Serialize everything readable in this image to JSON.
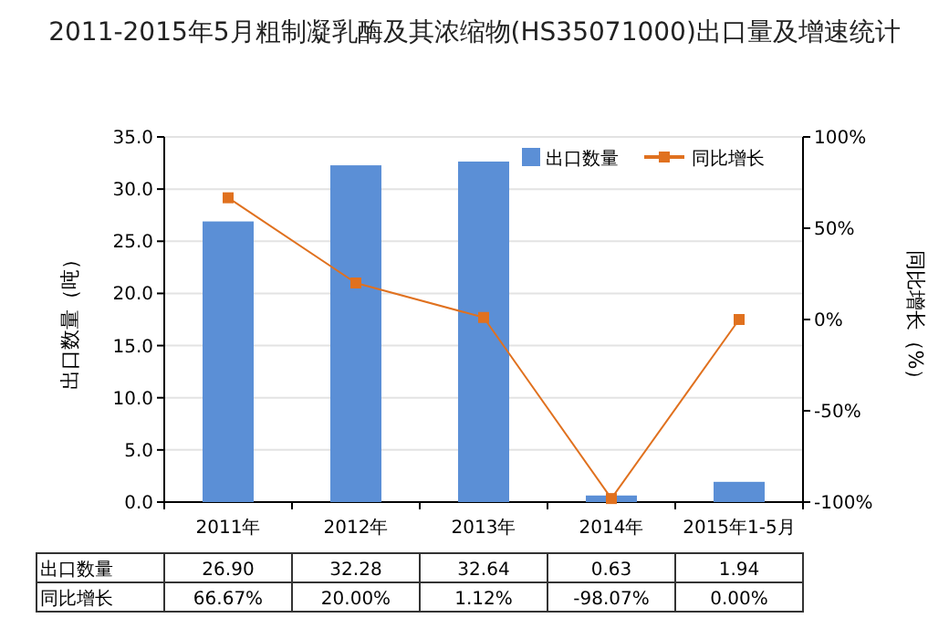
{
  "chart_data": {
    "type": "bar",
    "title": "2011-2015年5月粗制凝乳酶及其浓缩物(HS35071000)出口量及增速统计",
    "ylabel": "出口数量（吨）",
    "y2label": "同比增长（%）",
    "categories": [
      "2011年",
      "2012年",
      "2013年",
      "2014年",
      "2015年1-5月"
    ],
    "series": [
      {
        "name": "出口数量",
        "color": "#5b8fd6",
        "values": [
          26.9,
          32.28,
          32.64,
          0.63,
          1.94
        ],
        "value_labels": [
          "26.90",
          "32.28",
          "32.64",
          "0.63",
          "1.94"
        ]
      },
      {
        "name": "同比增长",
        "type": "line",
        "axis": "y2",
        "color": "#e0711f",
        "marker": "square",
        "values": [
          66.67,
          20.0,
          1.12,
          -98.07,
          0.0
        ],
        "value_labels": [
          "66.67%",
          "20.00%",
          "1.12%",
          "-98.07%",
          "0.00%"
        ]
      }
    ],
    "ylim": [
      0,
      35
    ],
    "yticks": [
      {
        "value": 0,
        "label": "0.0"
      },
      {
        "value": 5,
        "label": "5.0"
      },
      {
        "value": 10,
        "label": "10.0"
      },
      {
        "value": 15,
        "label": "15.0"
      },
      {
        "value": 20,
        "label": "20.0"
      },
      {
        "value": 25,
        "label": "25.0"
      },
      {
        "value": 30,
        "label": "30.0"
      },
      {
        "value": 35,
        "label": "35.0"
      }
    ],
    "y2lim": [
      -100,
      100
    ],
    "y2ticks": [
      {
        "value": -100,
        "label": "-100%"
      },
      {
        "value": -50,
        "label": "-50%"
      },
      {
        "value": 0,
        "label": "0%"
      },
      {
        "value": 50,
        "label": "50%"
      },
      {
        "value": 100,
        "label": "100%"
      }
    ],
    "grid": "y",
    "legend": "top right"
  }
}
